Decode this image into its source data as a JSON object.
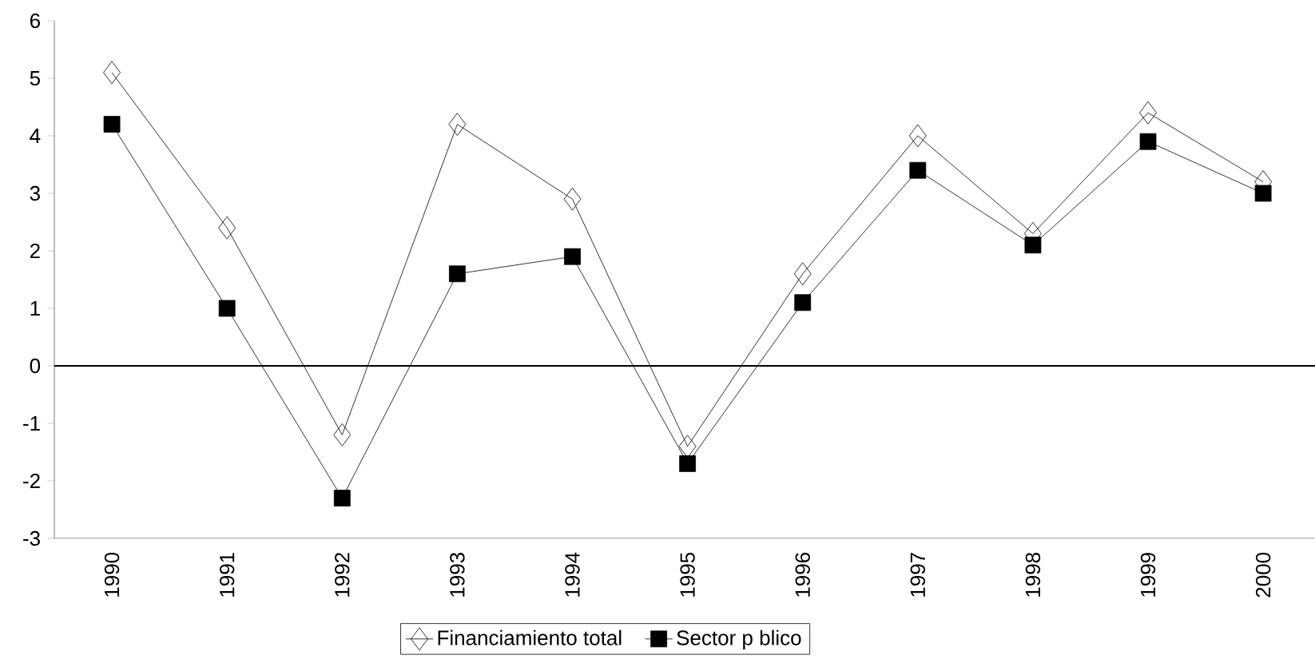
{
  "chart_data": {
    "type": "line",
    "categories": [
      "1990",
      "1991",
      "1992",
      "1993",
      "1994",
      "1995",
      "1996",
      "1997",
      "1998",
      "1999",
      "2000"
    ],
    "series": [
      {
        "name": "Financiamiento total",
        "color": "#000000",
        "marker": "diamond",
        "values": [
          5.1,
          2.4,
          -1.2,
          4.2,
          2.9,
          -1.4,
          1.6,
          4.0,
          2.3,
          4.4,
          3.2
        ]
      },
      {
        "name": "Sector p blico",
        "color": "#000000",
        "marker": "square",
        "values": [
          4.2,
          1.0,
          -2.3,
          1.6,
          1.9,
          -1.7,
          1.1,
          3.4,
          2.1,
          3.9,
          3.0
        ]
      }
    ],
    "ylim": [
      -3,
      6
    ],
    "yticks": [
      -3,
      -2,
      -1,
      0,
      1,
      2,
      3,
      4,
      5,
      6
    ],
    "ref_lines": [
      {
        "axis": "y",
        "value": 0,
        "color": "#000000"
      }
    ],
    "grid": false,
    "legend": "bottom",
    "line_style": "solid"
  }
}
